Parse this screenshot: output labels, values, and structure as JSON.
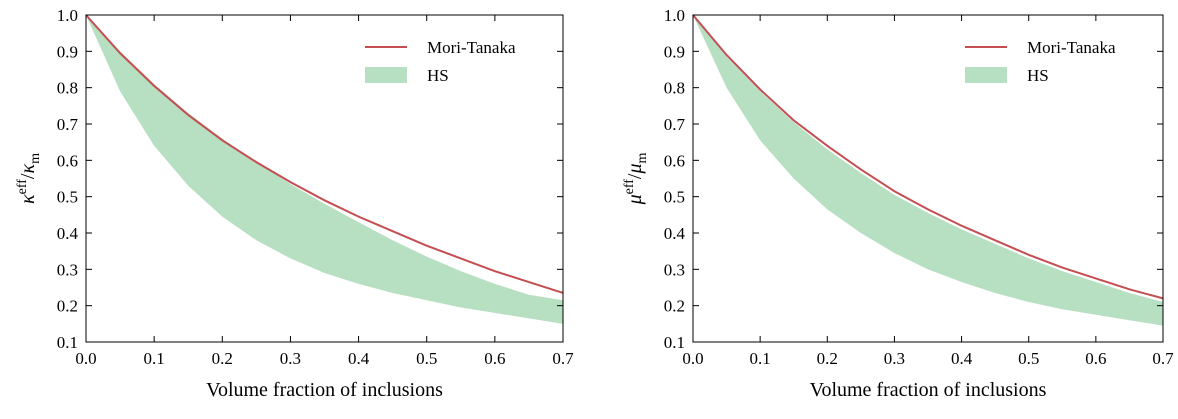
{
  "chart_data": [
    {
      "type": "line",
      "title": "",
      "xlabel": "Volume fraction of inclusions",
      "ylabel": {
        "base": "κ",
        "sup": "eff",
        "slash": "/",
        "base2": "κ",
        "sub": "m"
      },
      "xlim": [
        0.0,
        0.7
      ],
      "ylim": [
        0.1,
        1.0
      ],
      "xticks": [
        "0.0",
        "0.1",
        "0.2",
        "0.3",
        "0.4",
        "0.5",
        "0.6",
        "0.7"
      ],
      "yticks": [
        "0.1",
        "0.2",
        "0.3",
        "0.4",
        "0.5",
        "0.6",
        "0.7",
        "0.8",
        "0.9",
        "1.0"
      ],
      "legend_position": "top-right",
      "line_series": {
        "name": "Mori-Tanaka",
        "color": "#c44e52",
        "x": [
          0.0,
          0.05,
          0.1,
          0.15,
          0.2,
          0.25,
          0.3,
          0.35,
          0.4,
          0.45,
          0.5,
          0.55,
          0.6,
          0.65,
          0.7
        ],
        "y": [
          1.0,
          0.895,
          0.805,
          0.725,
          0.655,
          0.595,
          0.54,
          0.49,
          0.445,
          0.405,
          0.365,
          0.33,
          0.295,
          0.265,
          0.235
        ]
      },
      "band_series": {
        "name": "HS",
        "color": "#b7dfc1",
        "x": [
          0.0,
          0.05,
          0.1,
          0.15,
          0.2,
          0.25,
          0.3,
          0.35,
          0.4,
          0.45,
          0.5,
          0.55,
          0.6,
          0.65,
          0.7
        ],
        "upper": [
          1.0,
          0.9,
          0.81,
          0.73,
          0.66,
          0.595,
          0.535,
          0.48,
          0.43,
          0.38,
          0.335,
          0.295,
          0.26,
          0.23,
          0.215
        ],
        "lower": [
          1.0,
          0.79,
          0.64,
          0.53,
          0.445,
          0.38,
          0.33,
          0.29,
          0.26,
          0.235,
          0.215,
          0.195,
          0.18,
          0.165,
          0.15
        ]
      }
    },
    {
      "type": "line",
      "title": "",
      "xlabel": "Volume fraction of inclusions",
      "ylabel": {
        "base": "μ",
        "sup": "eff",
        "slash": "/",
        "base2": "μ",
        "sub": "m"
      },
      "xlim": [
        0.0,
        0.7
      ],
      "ylim": [
        0.1,
        1.0
      ],
      "xticks": [
        "0.0",
        "0.1",
        "0.2",
        "0.3",
        "0.4",
        "0.5",
        "0.6",
        "0.7"
      ],
      "yticks": [
        "0.1",
        "0.2",
        "0.3",
        "0.4",
        "0.5",
        "0.6",
        "0.7",
        "0.8",
        "0.9",
        "1.0"
      ],
      "legend_position": "top-right",
      "line_series": {
        "name": "Mori-Tanaka",
        "color": "#c44e52",
        "x": [
          0.0,
          0.05,
          0.1,
          0.15,
          0.2,
          0.25,
          0.3,
          0.35,
          0.4,
          0.45,
          0.5,
          0.55,
          0.6,
          0.65,
          0.7
        ],
        "y": [
          1.0,
          0.89,
          0.795,
          0.71,
          0.64,
          0.575,
          0.515,
          0.465,
          0.42,
          0.38,
          0.34,
          0.305,
          0.275,
          0.245,
          0.22
        ]
      },
      "band_series": {
        "name": "HS",
        "color": "#b7dfc1",
        "x": [
          0.0,
          0.05,
          0.1,
          0.15,
          0.2,
          0.25,
          0.3,
          0.35,
          0.4,
          0.45,
          0.5,
          0.55,
          0.6,
          0.65,
          0.7
        ],
        "upper": [
          1.0,
          0.885,
          0.79,
          0.705,
          0.63,
          0.565,
          0.505,
          0.455,
          0.41,
          0.37,
          0.33,
          0.295,
          0.265,
          0.235,
          0.21
        ],
        "lower": [
          1.0,
          0.8,
          0.655,
          0.55,
          0.465,
          0.4,
          0.345,
          0.3,
          0.265,
          0.235,
          0.21,
          0.19,
          0.175,
          0.16,
          0.145
        ]
      }
    }
  ]
}
